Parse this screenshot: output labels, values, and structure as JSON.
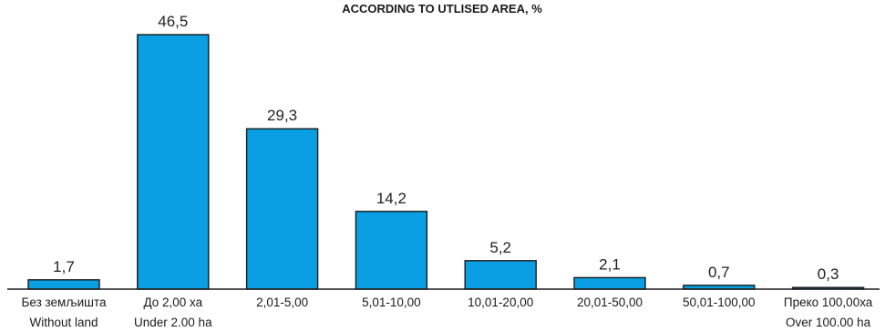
{
  "chart_data": {
    "type": "bar",
    "title": "ACCORDING  TO UTLISED AREA, %",
    "categories": [
      "Без земљишта",
      "До 2,00 ха",
      "2,01-5,00",
      "5,01-10,00",
      "10,01-20,00",
      "20,01-50,00",
      "50,01-100,00",
      "Преко 100,00ха"
    ],
    "categories_en": [
      "Without land",
      "Under 2.00 ha",
      "",
      "",
      "",
      "",
      "",
      "Over 100.00 ha"
    ],
    "values": [
      1.7,
      46.5,
      29.3,
      14.2,
      5.2,
      2.1,
      0.7,
      0.3
    ],
    "value_labels": [
      "1,7",
      "46,5",
      "29,3",
      "14,2",
      "5,2",
      "2,1",
      "0,7",
      "0,3"
    ],
    "ylim": [
      0,
      50
    ],
    "grid": false,
    "legend": "none",
    "colors": {
      "bar": "#0a9ee3",
      "outline": "#1a1a1a",
      "text": "#1a1a1a"
    }
  }
}
